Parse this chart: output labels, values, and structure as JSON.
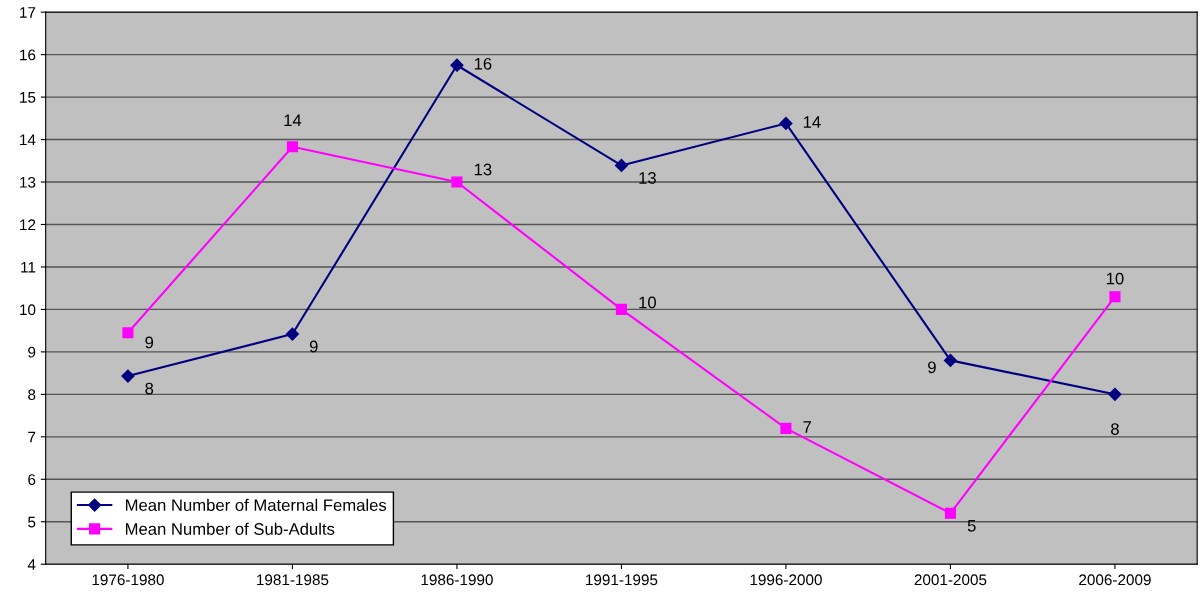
{
  "chart_data": {
    "type": "line",
    "categories": [
      "1976-1980",
      "1981-1985",
      "1986-1990",
      "1991-1995",
      "1996-2000",
      "2001-2005",
      "2006-2009"
    ],
    "series": [
      {
        "name": "Mean Number of Maternal Females",
        "color": "#000080",
        "marker": "diamond",
        "values": [
          8.43,
          9.42,
          15.75,
          13.39,
          14.38,
          8.8,
          8.0
        ],
        "value_labels": [
          "8",
          "9",
          "16",
          "13",
          "14",
          "9",
          "8"
        ]
      },
      {
        "name": "Mean Number of Sub-Adults",
        "color": "#ff00ff",
        "marker": "square",
        "values": [
          9.45,
          13.83,
          13.0,
          10.0,
          7.2,
          5.2,
          10.3
        ],
        "value_labels": [
          "9",
          "14",
          "13",
          "10",
          "7",
          "5",
          "10"
        ]
      }
    ],
    "ylim": [
      4,
      17
    ],
    "yticks": [
      4,
      5,
      6,
      7,
      8,
      9,
      10,
      11,
      12,
      13,
      14,
      15,
      16,
      17
    ],
    "grid": "y",
    "legend": "bottom left",
    "line_style": "solid"
  }
}
